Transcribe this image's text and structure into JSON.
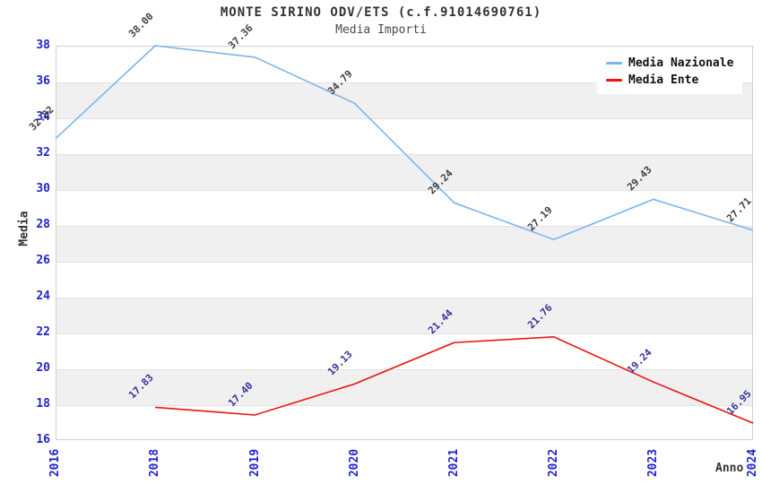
{
  "header": {
    "title": "MONTE SIRINO ODV/ETS (c.f.91014690761)",
    "subtitle": "Media Importi"
  },
  "chart_data": {
    "type": "line",
    "categories": [
      "2016",
      "2018",
      "2019",
      "2020",
      "2021",
      "2022",
      "2023",
      "2024"
    ],
    "series": [
      {
        "name": "Media Nazionale",
        "color": "#7cb5ec",
        "label_color": "#404040",
        "values": [
          32.82,
          38.0,
          37.36,
          34.79,
          29.24,
          27.19,
          29.43,
          27.71
        ]
      },
      {
        "name": "Media Ente",
        "color": "#ee1111",
        "label_color": "#333399",
        "values": [
          null,
          17.83,
          17.4,
          19.13,
          21.44,
          21.76,
          19.24,
          16.95
        ]
      }
    ],
    "xlabel": "Anno",
    "ylabel": "Media",
    "ylim": [
      16,
      38
    ],
    "ytick_step": 2,
    "grid": true,
    "banded": true,
    "legend_position": "top-right"
  },
  "style": {
    "tick_label_color": "#2323cc",
    "band_color": "#f0f0f0",
    "grid_line_color": "#e2e2e2",
    "axis_title_color": "#333333"
  }
}
